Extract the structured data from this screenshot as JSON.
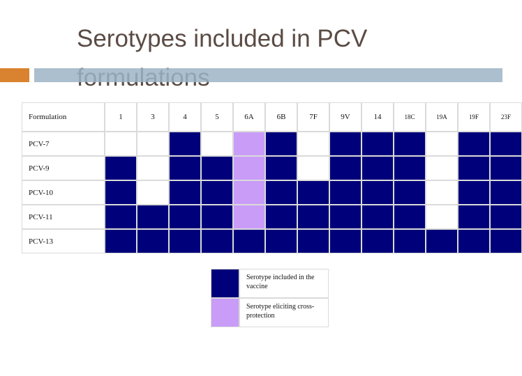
{
  "title": {
    "line1": "Serotypes included in PCV",
    "line2": "formulations"
  },
  "table": {
    "corner": "Formulation",
    "columns": [
      "1",
      "3",
      "4",
      "5",
      "6A",
      "6B",
      "7F",
      "9V",
      "14",
      "18C",
      "19A",
      "19F",
      "23F"
    ],
    "rows": [
      {
        "label": "PCV-7",
        "cells": [
          "empty",
          "empty",
          "included",
          "empty",
          "cross",
          "included",
          "empty",
          "included",
          "included",
          "included",
          "empty",
          "included",
          "included"
        ]
      },
      {
        "label": "PCV-9",
        "cells": [
          "included",
          "empty",
          "included",
          "included",
          "cross",
          "included",
          "empty",
          "included",
          "included",
          "included",
          "empty",
          "included",
          "included"
        ]
      },
      {
        "label": "PCV-10",
        "cells": [
          "included",
          "empty",
          "included",
          "included",
          "cross",
          "included",
          "included",
          "included",
          "included",
          "included",
          "empty",
          "included",
          "included"
        ]
      },
      {
        "label": "PCV-11",
        "cells": [
          "included",
          "included",
          "included",
          "included",
          "cross",
          "included",
          "included",
          "included",
          "included",
          "included",
          "empty",
          "included",
          "included"
        ]
      },
      {
        "label": "PCV-13",
        "cells": [
          "included",
          "included",
          "included",
          "included",
          "included",
          "included",
          "included",
          "included",
          "included",
          "included",
          "included",
          "included",
          "included"
        ]
      }
    ]
  },
  "legend": {
    "included_label": "Serotype included in the vaccine",
    "cross_label": "Serotype eliciting cross-protection"
  },
  "colors": {
    "included": "#00007a",
    "cross": "#c99cf8",
    "accent_orange": "#d9822f",
    "accent_blue": "#9cb4c6"
  }
}
